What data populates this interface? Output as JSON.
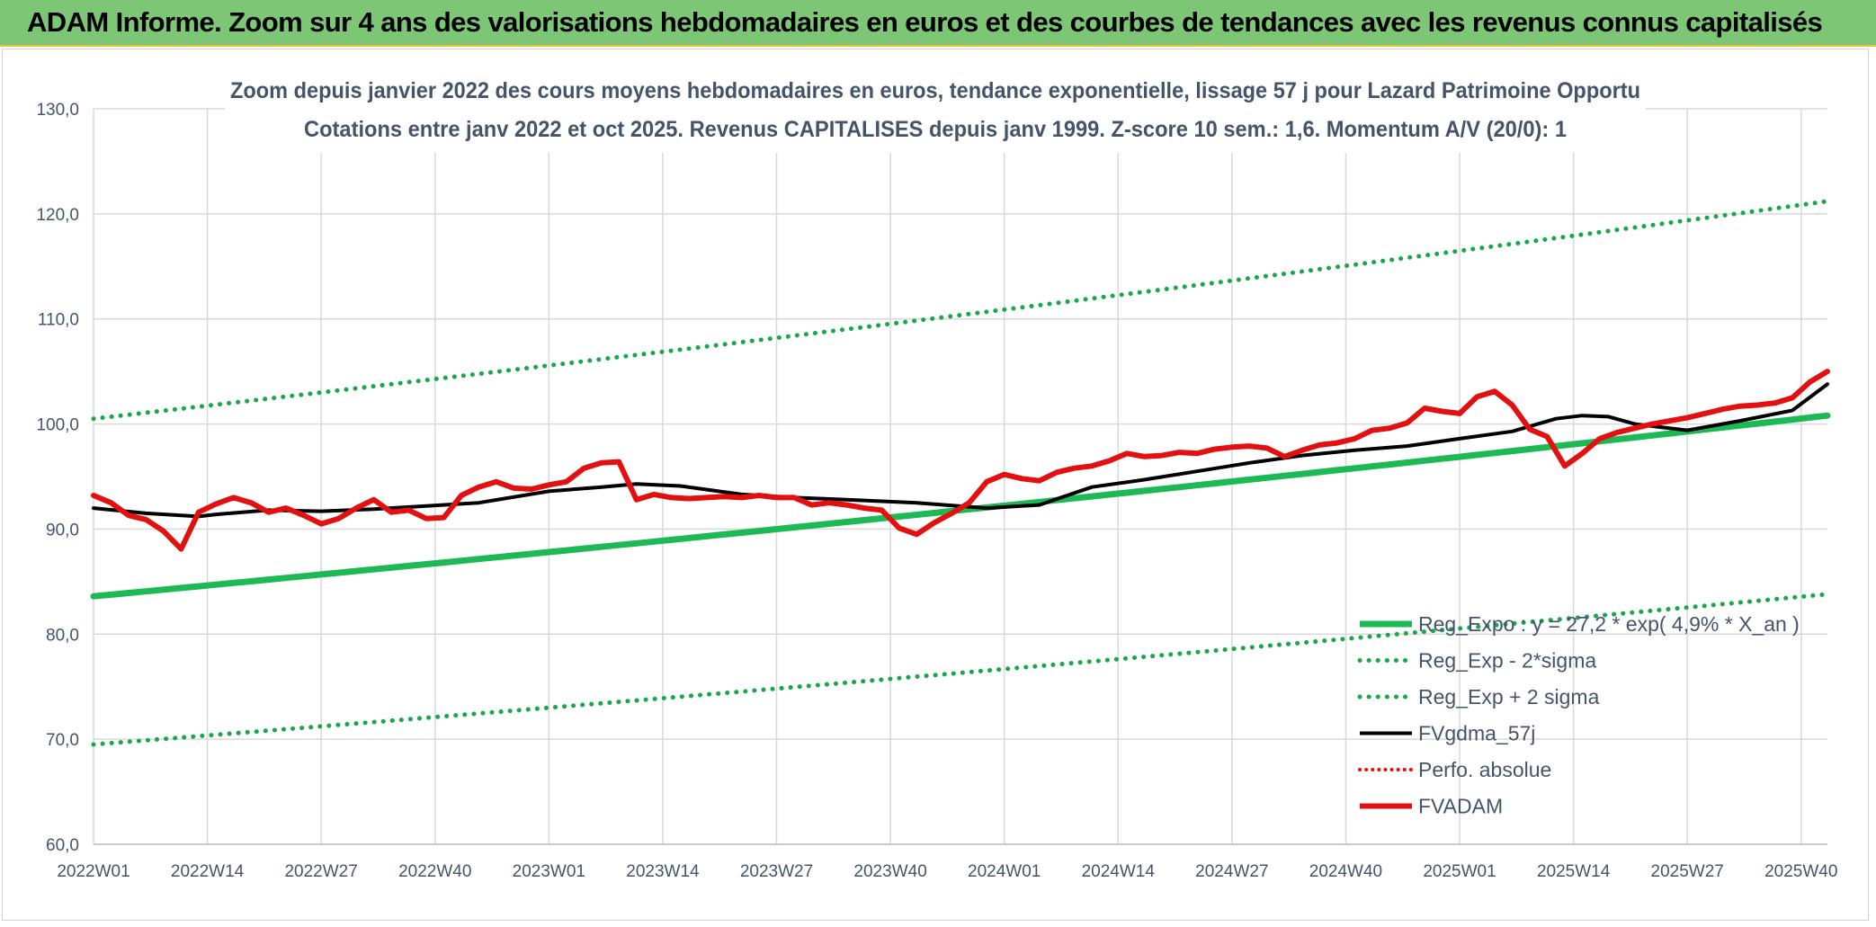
{
  "banner": {
    "title": "ADAM Informe. Zoom sur 4 ans des valorisations hebdomadaires en euros et des courbes de tendances avec les revenus connus capitalisés"
  },
  "colors": {
    "banner_bg": "#7cc675",
    "reg_expo": "#1db954",
    "sigma_bands": "#18a84a",
    "fvgdma": "#000000",
    "perfo": "#e31010",
    "fvadam": "#e31010",
    "grid": "#d9d9d9",
    "text": "#44546a"
  },
  "chart_data": {
    "type": "line",
    "title": "Zoom depuis janvier 2022 des cours moyens hebdomadaires en euros, tendance exponentielle, lissage 57 j pour Lazard Patrimoine Opportu",
    "subtitle": "Cotations entre janv 2022 et oct 2025. Revenus CAPITALISES depuis janv 1999. Z-score 10 sem.: 1,6. Momentum A/V (20/0): 1",
    "xlabel": "",
    "ylabel": "",
    "ylim": [
      60,
      130
    ],
    "yticks": [
      "60,0",
      "70,0",
      "80,0",
      "90,0",
      "100,0",
      "110,0",
      "120,0",
      "130,0"
    ],
    "x_tick_labels": [
      "2022W01",
      "2022W14",
      "2022W27",
      "2022W40",
      "2023W01",
      "2023W14",
      "2023W27",
      "2023W40",
      "2024W01",
      "2024W14",
      "2024W27",
      "2024W40",
      "2025W01",
      "2025W14",
      "2025W27",
      "2025W40"
    ],
    "weeks_per_tick": 13,
    "n_weeks": 199,
    "grid": true,
    "legend_position": "bottom-right",
    "series": [
      {
        "name": "Reg_Expo : y = 27,2 * exp( 4,9% *  X_an )",
        "key": "reg",
        "style": "solid-thick",
        "x": [
          0,
          198
        ],
        "y": [
          83.6,
          100.8
        ]
      },
      {
        "name": "Reg_Exp - 2*sigma",
        "key": "lower",
        "style": "dotted",
        "x": [
          0,
          198
        ],
        "y": [
          69.5,
          83.8
        ]
      },
      {
        "name": "Reg_Exp + 2 sigma",
        "key": "upper",
        "style": "dotted",
        "x": [
          0,
          198
        ],
        "y": [
          100.5,
          121.2
        ]
      },
      {
        "name": "FVgdma_57j",
        "key": "fvgdma",
        "style": "solid",
        "x": [
          0,
          6,
          12,
          14,
          20,
          26,
          32,
          38,
          44,
          52,
          58,
          62,
          67,
          74,
          80,
          86,
          94,
          102,
          108,
          114,
          120,
          126,
          132,
          138,
          144,
          150,
          156,
          162,
          167,
          170,
          173,
          176,
          182,
          188,
          194,
          198
        ],
        "y": [
          92.0,
          91.5,
          91.2,
          91.4,
          91.8,
          91.7,
          91.9,
          92.2,
          92.5,
          93.6,
          94.0,
          94.3,
          94.1,
          93.3,
          93.0,
          92.8,
          92.5,
          92.0,
          92.3,
          94.0,
          94.7,
          95.5,
          96.3,
          97.0,
          97.5,
          97.9,
          98.6,
          99.3,
          100.5,
          100.8,
          100.7,
          100.0,
          99.4,
          100.3,
          101.3,
          103.8
        ]
      },
      {
        "name": "Perfo. absolue",
        "key": "perfo",
        "style": "dotted",
        "x": [],
        "y": []
      },
      {
        "name": "FVADAM",
        "key": "fvadam",
        "style": "solid-thick",
        "x": [
          0,
          2,
          4,
          6,
          8,
          10,
          12,
          14,
          16,
          18,
          20,
          22,
          24,
          26,
          28,
          30,
          32,
          34,
          36,
          38,
          40,
          42,
          44,
          46,
          48,
          50,
          52,
          54,
          56,
          58,
          60,
          62,
          64,
          66,
          68,
          70,
          72,
          74,
          76,
          78,
          80,
          82,
          84,
          86,
          88,
          90,
          92,
          94,
          96,
          98,
          100,
          102,
          104,
          106,
          108,
          110,
          112,
          114,
          116,
          118,
          120,
          122,
          124,
          126,
          128,
          130,
          132,
          134,
          136,
          138,
          140,
          142,
          144,
          146,
          148,
          150,
          152,
          154,
          156,
          158,
          160,
          162,
          164,
          166,
          168,
          170,
          172,
          174,
          176,
          178,
          180,
          182,
          184,
          186,
          188,
          190,
          192,
          194,
          196,
          198
        ],
        "y": [
          93.2,
          92.5,
          91.3,
          90.9,
          89.8,
          88.1,
          91.6,
          92.4,
          93.0,
          92.5,
          91.6,
          92.0,
          91.3,
          90.5,
          91.0,
          92.0,
          92.8,
          91.6,
          91.8,
          91.0,
          91.1,
          93.2,
          94.0,
          94.5,
          93.9,
          93.8,
          94.2,
          94.5,
          95.8,
          96.3,
          96.4,
          92.8,
          93.3,
          93.0,
          92.9,
          93.0,
          93.1,
          93.0,
          93.2,
          93.0,
          93.0,
          92.3,
          92.5,
          92.3,
          92.0,
          91.8,
          90.1,
          89.5,
          90.6,
          91.5,
          92.5,
          94.5,
          95.2,
          94.8,
          94.6,
          95.4,
          95.8,
          96.0,
          96.5,
          97.2,
          96.9,
          97.0,
          97.3,
          97.2,
          97.6,
          97.8,
          97.9,
          97.7,
          96.9,
          97.5,
          98.0,
          98.2,
          98.6,
          99.4,
          99.6,
          100.1,
          101.5,
          101.2,
          101.0,
          102.6,
          103.1,
          101.8,
          99.5,
          98.8,
          96.0,
          97.2,
          98.6,
          99.2,
          99.6,
          100.0,
          100.3,
          100.6,
          101.0,
          101.4,
          101.7,
          101.8,
          102.0,
          102.5,
          104.0,
          105.0
        ]
      }
    ]
  }
}
